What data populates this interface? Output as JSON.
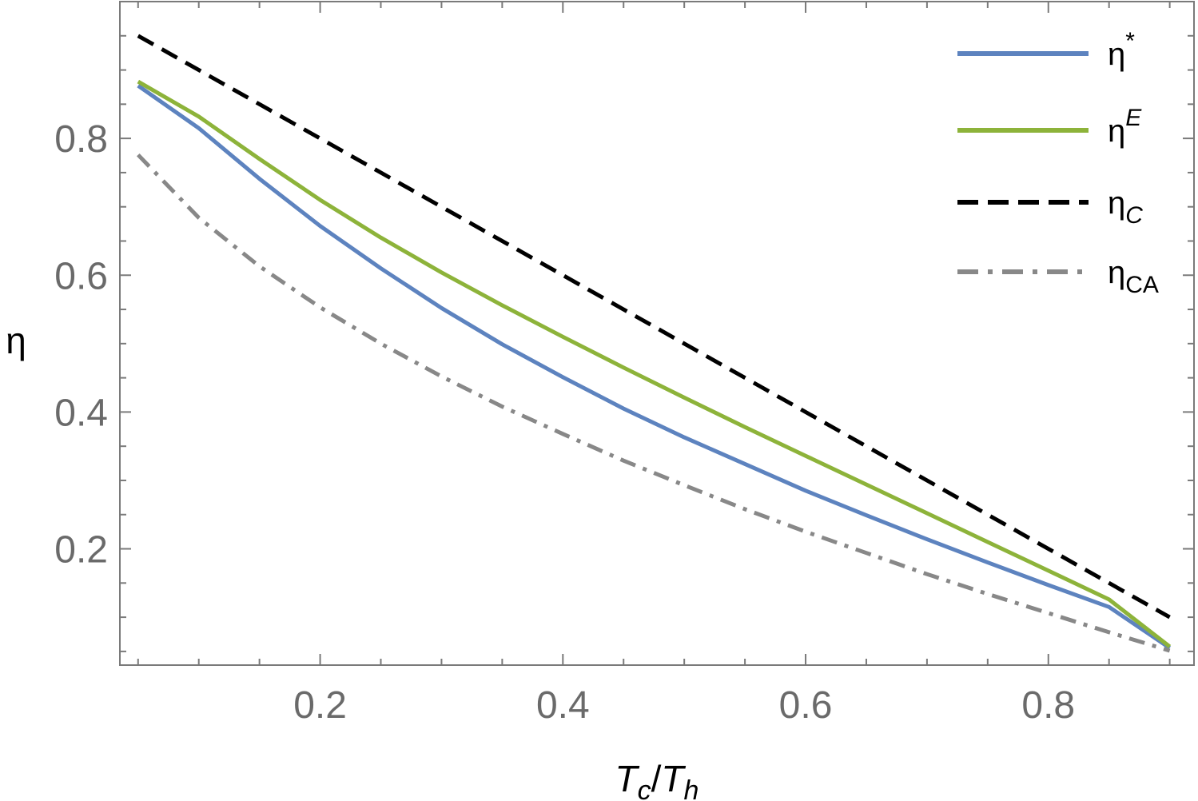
{
  "chart_data": {
    "type": "line",
    "xlabel": {
      "main": "T",
      "sub1": "c",
      "slash": "/",
      "main2": "T",
      "sub2": "h"
    },
    "ylabel": "η",
    "xlim": [
      0.035,
      0.92
    ],
    "ylim": [
      0.03,
      1.0
    ],
    "x_ticks": [
      {
        "value": 0.2,
        "label": "0.2"
      },
      {
        "value": 0.4,
        "label": "0.4"
      },
      {
        "value": 0.6,
        "label": "0.6"
      },
      {
        "value": 0.8,
        "label": "0.8"
      }
    ],
    "y_ticks": [
      {
        "value": 0.2,
        "label": "0.2"
      },
      {
        "value": 0.4,
        "label": "0.4"
      },
      {
        "value": 0.6,
        "label": "0.6"
      },
      {
        "value": 0.8,
        "label": "0.8"
      }
    ],
    "x_minor_step": 0.05,
    "y_minor_step": 0.05,
    "grid": false,
    "legend_position": "top-right",
    "series": [
      {
        "name": "η*",
        "legend": {
          "base": "η",
          "sup": "*",
          "sub": ""
        },
        "color": "#5d83bf",
        "dash": "solid",
        "x": [
          0.05,
          0.1,
          0.15,
          0.2,
          0.25,
          0.3,
          0.35,
          0.4,
          0.45,
          0.5,
          0.55,
          0.6,
          0.65,
          0.7,
          0.75,
          0.8,
          0.85,
          0.9
        ],
        "y": [
          0.877,
          0.815,
          0.741,
          0.672,
          0.61,
          0.552,
          0.499,
          0.451,
          0.405,
          0.363,
          0.324,
          0.285,
          0.249,
          0.214,
          0.18,
          0.147,
          0.115,
          0.055
        ]
      },
      {
        "name": "ηE",
        "legend": {
          "base": "η",
          "sup": "E",
          "sub": ""
        },
        "color": "#8db33a",
        "dash": "solid",
        "x": [
          0.05,
          0.1,
          0.15,
          0.2,
          0.25,
          0.3,
          0.35,
          0.4,
          0.45,
          0.5,
          0.55,
          0.6,
          0.65,
          0.7,
          0.75,
          0.8,
          0.85,
          0.9
        ],
        "y": [
          0.883,
          0.832,
          0.77,
          0.71,
          0.655,
          0.604,
          0.556,
          0.51,
          0.465,
          0.421,
          0.378,
          0.336,
          0.294,
          0.252,
          0.21,
          0.168,
          0.126,
          0.057
        ]
      },
      {
        "name": "ηC",
        "legend": {
          "base": "η",
          "sup": "",
          "sub": "C"
        },
        "color": "#000000",
        "dash": "dashed",
        "x": [
          0.05,
          0.9
        ],
        "y": [
          0.95,
          0.1
        ]
      },
      {
        "name": "ηCA",
        "legend": {
          "base": "η",
          "sup": "",
          "sub": "CA"
        },
        "color": "#888888",
        "dash": "dashdot",
        "x": [
          0.05,
          0.1,
          0.15,
          0.2,
          0.25,
          0.3,
          0.35,
          0.4,
          0.45,
          0.5,
          0.55,
          0.6,
          0.65,
          0.7,
          0.75,
          0.8,
          0.85,
          0.9
        ],
        "y": [
          0.776,
          0.684,
          0.613,
          0.553,
          0.5,
          0.452,
          0.408,
          0.368,
          0.329,
          0.293,
          0.258,
          0.225,
          0.194,
          0.163,
          0.134,
          0.106,
          0.078,
          0.051
        ]
      }
    ]
  }
}
